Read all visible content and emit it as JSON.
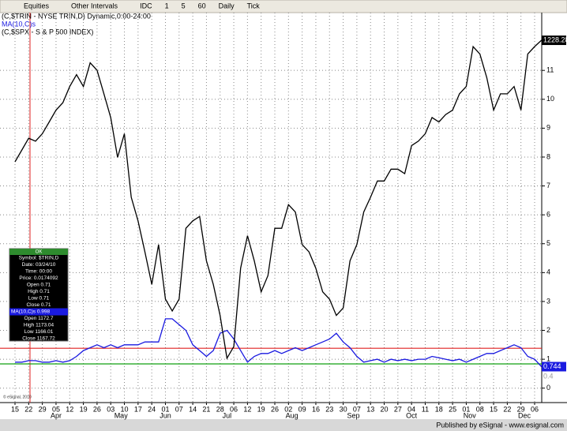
{
  "toolbar": {
    "items": [
      "Equities",
      "Other Intervals",
      "IDC",
      "1",
      "5",
      "60",
      "Daily",
      "Tick"
    ]
  },
  "chart_data": {
    "type": "line",
    "title": "(C,$TRIN - NYSE TRIN,D) Dynamic,0:00-24:00",
    "categories": [
      "15",
      null,
      "22",
      null,
      "29",
      null,
      "05",
      null,
      "12",
      null,
      "19",
      null,
      "26",
      null,
      "03",
      null,
      "10",
      null,
      "17",
      null,
      "24",
      null,
      "01",
      null,
      "07",
      null,
      "14",
      null,
      "21",
      null,
      "28",
      null,
      "06",
      null,
      "12",
      null,
      "19",
      null,
      "26",
      null,
      "02",
      null,
      "09",
      null,
      "16",
      null,
      "23",
      null,
      "30",
      null,
      "07",
      null,
      "13",
      null,
      "20",
      null,
      "27",
      null,
      "04",
      null,
      "11",
      null,
      "18",
      null,
      "25",
      null,
      "01",
      null,
      "08",
      null,
      "15",
      null,
      "22",
      null,
      "29",
      null,
      "06",
      null
    ],
    "months": [
      "Apr",
      "May",
      "Jun",
      "Jul",
      "Aug",
      "Sep",
      "Oct",
      "Nov",
      "Dec"
    ],
    "series": [
      {
        "name": "MA(10,C)s",
        "color": "#1a1ae0",
        "values": [
          0.9,
          0.9,
          0.95,
          0.95,
          0.9,
          0.9,
          0.95,
          0.9,
          0.95,
          1.1,
          1.3,
          1.4,
          1.5,
          1.4,
          1.5,
          1.4,
          1.5,
          1.5,
          1.5,
          1.6,
          1.6,
          1.6,
          2.4,
          2.4,
          2.2,
          2.0,
          1.5,
          1.3,
          1.1,
          1.3,
          1.9,
          2.0,
          1.7,
          1.3,
          0.9,
          1.1,
          1.2,
          1.2,
          1.3,
          1.2,
          1.3,
          1.4,
          1.3,
          1.4,
          1.5,
          1.6,
          1.7,
          1.9,
          1.6,
          1.4,
          1.1,
          0.9,
          0.95,
          1.0,
          0.9,
          1.0,
          0.95,
          1.0,
          0.95,
          1.0,
          1.0,
          1.1,
          1.05,
          1.0,
          0.95,
          1.0,
          0.9,
          1.0,
          1.1,
          1.2,
          1.2,
          1.3,
          1.4,
          1.5,
          1.4,
          1.1,
          1.0,
          0.744
        ]
      },
      {
        "name": "(C,$SPX - S & P 500 INDEX)",
        "color": "#000000",
        "axis": "y2",
        "values": [
          1146,
          1154,
          1162,
          1160,
          1165,
          1173,
          1181,
          1186,
          1197,
          1205,
          1197,
          1213,
          1208,
          1192,
          1176,
          1149,
          1165,
          1122,
          1106,
          1085,
          1063,
          1090,
          1053,
          1045,
          1053,
          1101,
          1106,
          1109,
          1079,
          1063,
          1042,
          1013,
          1021,
          1074,
          1096,
          1079,
          1058,
          1069,
          1101,
          1101,
          1117,
          1112,
          1090,
          1085,
          1074,
          1058,
          1053,
          1042,
          1047,
          1079,
          1090,
          1112,
          1122,
          1133,
          1133,
          1141,
          1141,
          1138,
          1157,
          1160,
          1165,
          1176,
          1173,
          1178,
          1181,
          1192,
          1197,
          1224,
          1219,
          1203,
          1181,
          1192,
          1192,
          1197,
          1181,
          1219,
          1224,
          1228.28
        ]
      }
    ],
    "ylim": [
      -0.5,
      13
    ],
    "yticks": [
      0,
      1,
      2,
      3,
      4,
      5,
      6,
      7,
      8,
      9,
      10,
      11
    ],
    "y2lim": [
      983,
      1247
    ],
    "y_marker": 0.4,
    "reference_lines": [
      {
        "value": 1.38,
        "color": "#e02020"
      },
      {
        "value": 0.84,
        "color": "#10a010"
      }
    ],
    "grid": true
  },
  "data_window": {
    "header": "OK",
    "rows": [
      "Symbol: $TRIN,D",
      "Date: 03/24/10",
      "Time: 00:00",
      "Price: 0.0174092",
      "Open 0.71",
      "High 0.71",
      "Low 0.71",
      "Close 0.71"
    ],
    "ma_row": "MA(10,C)s 0.998",
    "rows2": [
      "Open 1172.7",
      "High 1173.04",
      "Low 1166.01",
      "Close 1167.72"
    ]
  },
  "copyright": "© eSignal, 2010",
  "footer": "Published by eSignal - www.esignal.com"
}
